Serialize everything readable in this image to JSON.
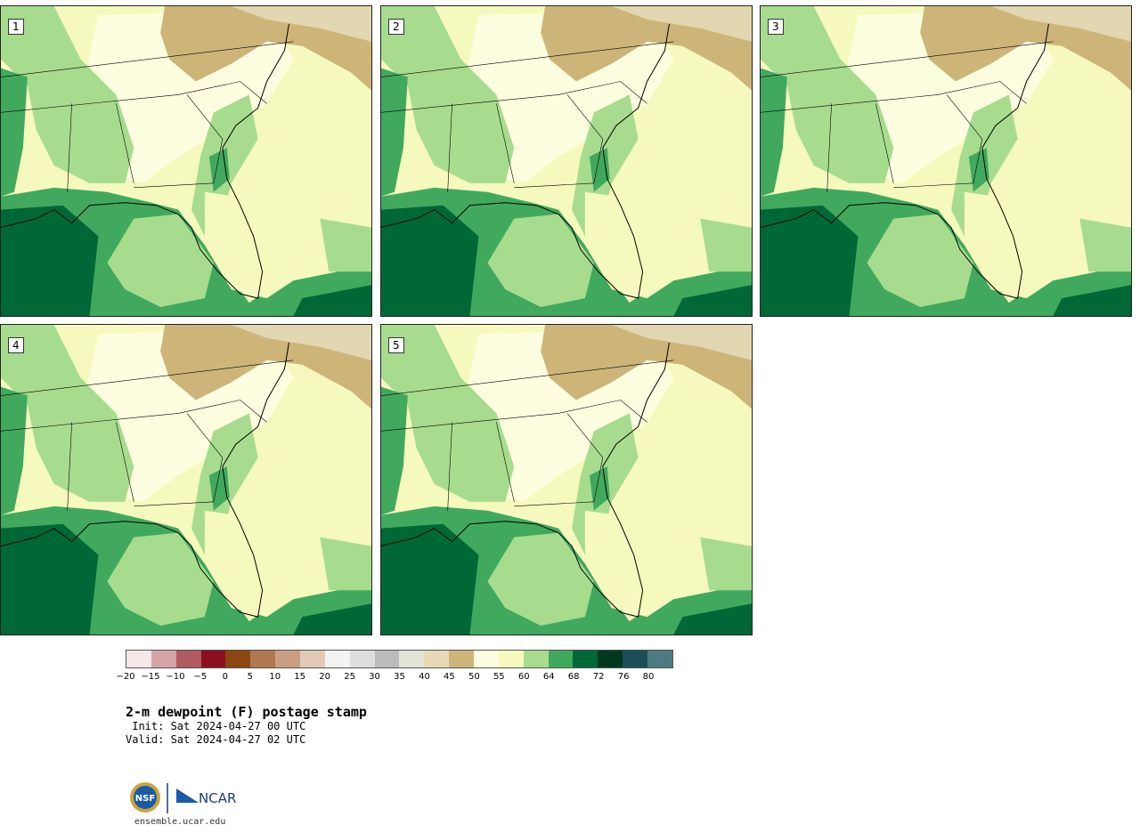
{
  "colors": {
    "bin_50_55": "#fdfee0",
    "bin_55_60": "#f6f9bd",
    "bin_60_64": "#a7dc8e",
    "bin_64_68": "#41a95d",
    "bin_68_72": "#006837",
    "bin_45_50": "#cdb57a",
    "bin_40_45": "#e2d7b1"
  },
  "panels": [
    {
      "label": "1"
    },
    {
      "label": "2"
    },
    {
      "label": "3"
    },
    {
      "label": "4"
    },
    {
      "label": "5"
    }
  ],
  "colorbar": {
    "colors": [
      "#f6e8e8",
      "#d4a4a7",
      "#b15a61",
      "#8a1020",
      "#8c4610",
      "#b07850",
      "#c99e82",
      "#e3c9b8",
      "#f2f2f2",
      "#dedede",
      "#bbbbbb",
      "#e3e3d6",
      "#e6d9b6",
      "#cdb57a",
      "#fdfee0",
      "#f6f9bd",
      "#a7dc8e",
      "#41a95d",
      "#006837",
      "#00391f",
      "#1c4e58",
      "#4e7b82"
    ],
    "ticks": [
      "−20",
      "−15",
      "−10",
      "−5",
      "0",
      "5",
      "10",
      "15",
      "20",
      "25",
      "30",
      "35",
      "40",
      "45",
      "50",
      "55",
      "60",
      "64",
      "68",
      "72",
      "76",
      "80"
    ]
  },
  "title": "2-m dewpoint (F) postage stamp",
  "init_line": " Init: Sat 2024-04-27 00 UTC",
  "valid_line": "Valid: Sat 2024-04-27 02 UTC",
  "logos": {
    "nsf_text": "NSF",
    "ncar_text": "NCAR"
  },
  "site": "ensemble.ucar.edu"
}
